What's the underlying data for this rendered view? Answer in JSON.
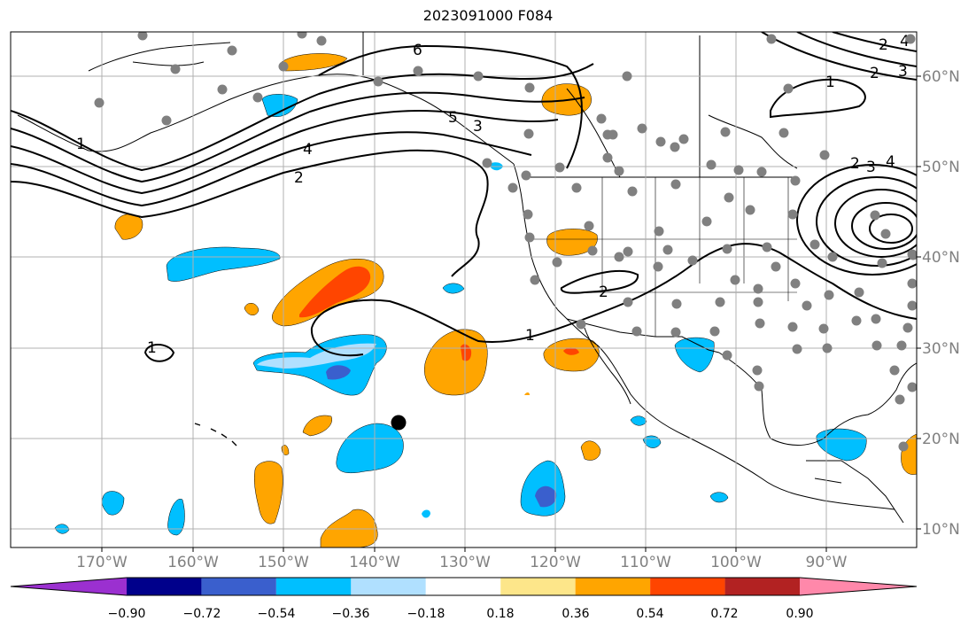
{
  "title": "2023091000 F084",
  "colors": {
    "land_line": "#000000",
    "grid": "#b0b0b0",
    "station": "#808080",
    "contour": "#000000"
  },
  "axes": {
    "longitude_labels": [
      "170°W",
      "160°W",
      "150°W",
      "140°W",
      "130°W",
      "120°W",
      "110°W",
      "100°W",
      "90°W"
    ],
    "latitude_labels": [
      "60°N",
      "50°N",
      "40°N",
      "30°N",
      "20°N",
      "10°N"
    ]
  },
  "colorbar": {
    "tick_labels": [
      "−0.90",
      "−0.72",
      "−0.54",
      "−0.36",
      "−0.18",
      "0.18",
      "0.36",
      "0.54",
      "0.72",
      "0.90"
    ],
    "colors": [
      "#9b30d0",
      "#00008b",
      "#3a5fcd",
      "#00bfff",
      "#b0e0ff",
      "#ffffff",
      "#fde68a",
      "#ffa500",
      "#ff4500",
      "#b22222",
      "#ff88aa"
    ]
  },
  "contour_labels": [
    "6",
    "5",
    "4",
    "3",
    "2",
    "1",
    "2",
    "1",
    "2",
    "3",
    "4",
    "1",
    "2",
    "3",
    "4",
    "1",
    "2"
  ]
}
